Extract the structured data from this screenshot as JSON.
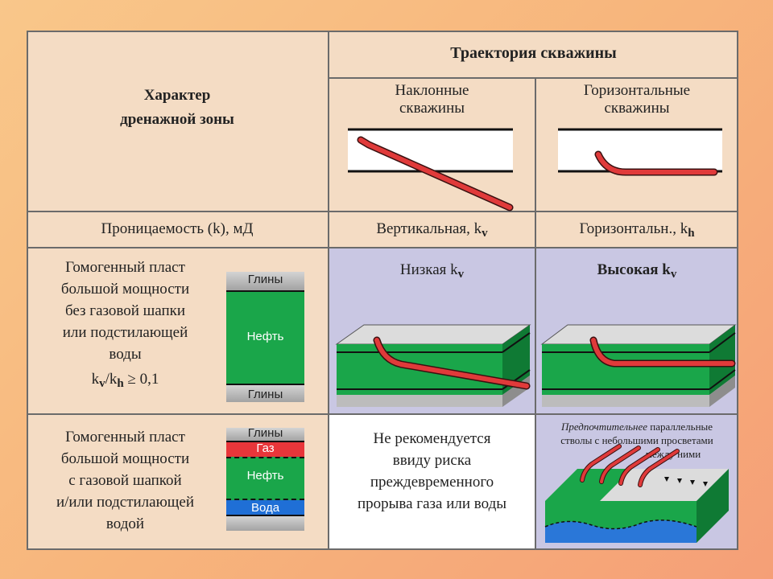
{
  "header": {
    "left_title_line1": "Характер",
    "left_title_line2": "дренажной зоны",
    "trajectory_title": "Траектория скважины",
    "inclined_line1": "Наклонные",
    "inclined_line2": "скважины",
    "horizontal_line1": "Горизонтальные",
    "horizontal_line2": "скважины"
  },
  "perm_row": {
    "label": "Проницаемость (k), мД",
    "vertical_prefix": "Вертикальная, k",
    "vertical_sub": "v",
    "horizontal_prefix": "Горизонтальн., k",
    "horizontal_sub": "h"
  },
  "row1": {
    "desc_lines": [
      "Гомогенный пласт",
      "большой мощности",
      "без газовой шапки",
      "или подстилающей",
      "воды"
    ],
    "ratio_k1": "k",
    "ratio_sub1": "v",
    "ratio_slash": "/k",
    "ratio_sub2": "h",
    "ratio_rest": " ≥ 0,1",
    "layer_top": "Глины",
    "layer_mid": "Нефть",
    "layer_bottom": "Глины",
    "low_prefix": "Низкая k",
    "low_sub": "v",
    "high_prefix": "Высокая k",
    "high_sub": "v"
  },
  "row2": {
    "desc_lines": [
      "Гомогенный пласт",
      "большой мощности",
      "с газовой шапкой",
      "и/или подстилающей",
      "водой"
    ],
    "layer_top": "Глины",
    "layer_gas": "Газ",
    "layer_oil": "Нефть",
    "layer_water": "Вода",
    "not_recommended_lines": [
      "Не рекомендуется",
      "ввиду риска",
      "преждевременного",
      "прорыва газа или воды"
    ],
    "note_italic": "Предпочтительнее",
    "note_rest1": " параллельные",
    "note_line2": "стволы с небольшими просветами",
    "note_line3": "между ними"
  },
  "colors": {
    "green": "#1aa64a",
    "red_pipe": "#d93030",
    "gas_red": "#e8363a",
    "water_blue": "#1f6fd6",
    "clay_grey": "#a9a9a9",
    "purple_bg": "#c9c7e3"
  }
}
